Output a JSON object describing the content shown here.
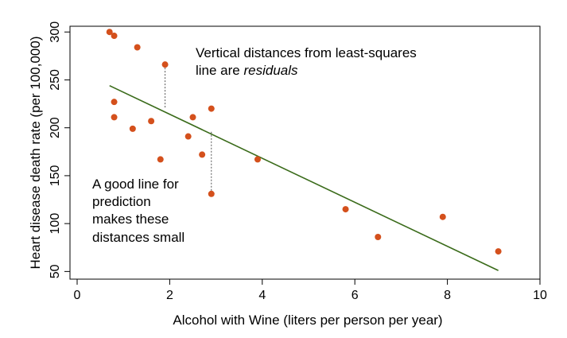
{
  "chart_data": {
    "type": "scatter",
    "title": "",
    "xlabel": "Alcohol with Wine (liters per person per year)",
    "ylabel": "Heart disease death rate (per 100,000)",
    "xlim": [
      0,
      10
    ],
    "ylim": [
      42,
      306
    ],
    "xticks": [
      0,
      2,
      4,
      6,
      8,
      10
    ],
    "yticks": [
      50,
      100,
      150,
      200,
      250,
      300
    ],
    "grid": false,
    "colors": {
      "points": "#d4501c",
      "line": "#3a6b1a",
      "residual": "#555555"
    },
    "points": [
      {
        "x": 0.7,
        "y": 300
      },
      {
        "x": 0.8,
        "y": 296
      },
      {
        "x": 1.3,
        "y": 284
      },
      {
        "x": 1.9,
        "y": 266
      },
      {
        "x": 0.8,
        "y": 227
      },
      {
        "x": 0.8,
        "y": 211
      },
      {
        "x": 1.2,
        "y": 199
      },
      {
        "x": 1.6,
        "y": 207
      },
      {
        "x": 1.8,
        "y": 167
      },
      {
        "x": 2.4,
        "y": 191
      },
      {
        "x": 2.5,
        "y": 211
      },
      {
        "x": 2.7,
        "y": 172
      },
      {
        "x": 2.9,
        "y": 220
      },
      {
        "x": 2.9,
        "y": 131
      },
      {
        "x": 3.9,
        "y": 167
      },
      {
        "x": 5.8,
        "y": 115
      },
      {
        "x": 6.5,
        "y": 86
      },
      {
        "x": 7.9,
        "y": 107
      },
      {
        "x": 9.1,
        "y": 71
      }
    ],
    "fit_line": {
      "x": [
        0.7,
        9.1
      ],
      "y": [
        244,
        51
      ]
    },
    "residual_segments": [
      {
        "x": 1.9,
        "y_from": 266,
        "y_to": 220
      },
      {
        "x": 2.9,
        "y_from": 131,
        "y_to": 196
      }
    ],
    "annotations": {
      "top_line1": "Vertical distances from least-squares",
      "top_line2_prefix": "line are ",
      "top_line2_italic": "residuals",
      "bottom_lines": [
        "A good line for",
        "prediction",
        "makes these",
        "distances small"
      ]
    }
  }
}
